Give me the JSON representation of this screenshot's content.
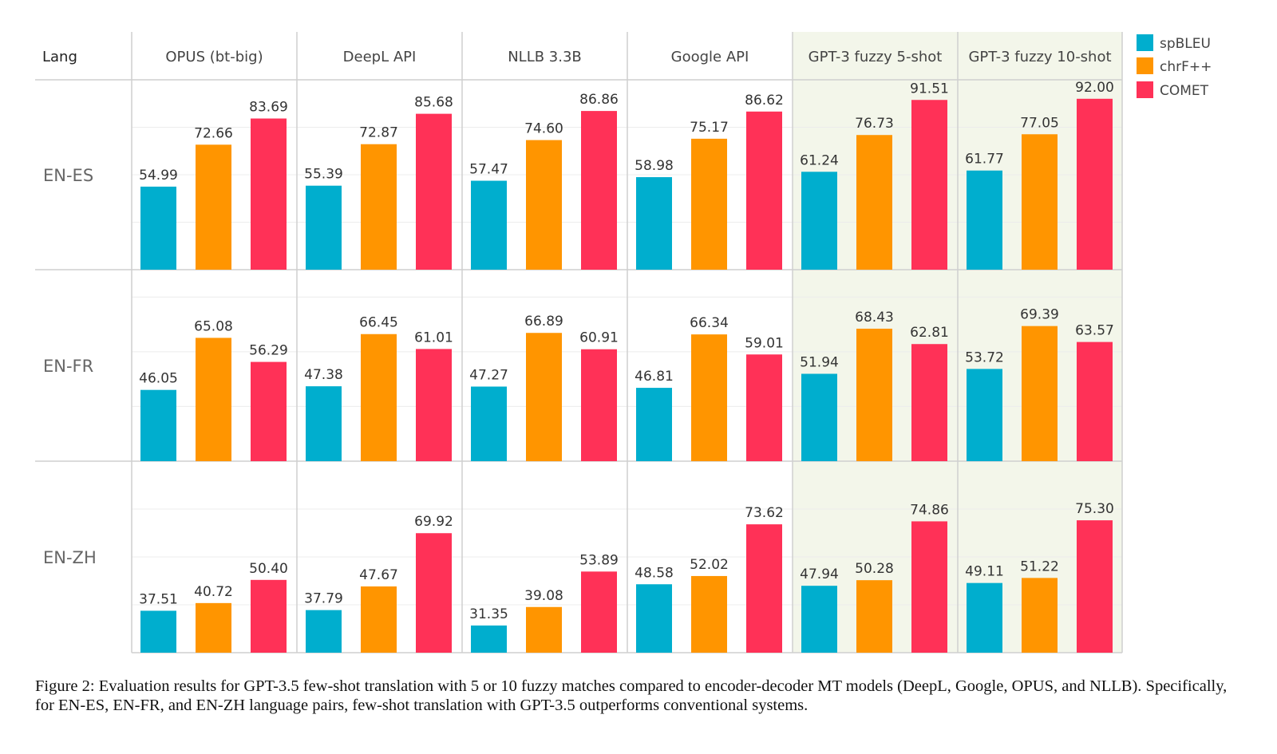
{
  "chart_data": {
    "type": "bar",
    "corner_label": "Lang",
    "systems": [
      {
        "name": "OPUS (bt-big)",
        "highlight": false
      },
      {
        "name": "DeepL API",
        "highlight": false
      },
      {
        "name": "NLLB 3.3B",
        "highlight": false
      },
      {
        "name": "Google API",
        "highlight": false
      },
      {
        "name": "GPT-3 fuzzy 5-shot",
        "highlight": true
      },
      {
        "name": "GPT-3 fuzzy 10-shot",
        "highlight": true
      }
    ],
    "languages": [
      "EN-ES",
      "EN-FR",
      "EN-ZH"
    ],
    "metrics": [
      {
        "name": "spBLEU",
        "color": "#00AECE"
      },
      {
        "name": "chrF++",
        "color": "#FF9500"
      },
      {
        "name": "COMET",
        "color": "#FF3157"
      }
    ],
    "values": {
      "EN-ES": [
        [
          54.99,
          72.66,
          83.69
        ],
        [
          55.39,
          72.87,
          85.68
        ],
        [
          57.47,
          74.6,
          86.86
        ],
        [
          58.98,
          75.17,
          86.62
        ],
        [
          61.24,
          76.73,
          91.51
        ],
        [
          61.77,
          77.05,
          92.0
        ]
      ],
      "EN-FR": [
        [
          46.05,
          65.08,
          56.29
        ],
        [
          47.38,
          66.45,
          61.01
        ],
        [
          47.27,
          66.89,
          60.91
        ],
        [
          46.81,
          66.34,
          59.01
        ],
        [
          51.94,
          68.43,
          62.81
        ],
        [
          53.72,
          69.39,
          63.57
        ]
      ],
      "EN-ZH": [
        [
          37.51,
          40.72,
          50.4
        ],
        [
          37.79,
          47.67,
          69.92
        ],
        [
          31.35,
          39.08,
          53.89
        ],
        [
          48.58,
          52.02,
          73.62
        ],
        [
          47.94,
          50.28,
          74.86
        ],
        [
          49.11,
          51.22,
          75.3
        ]
      ]
    },
    "value_labels": {
      "EN-ES": [
        [
          "54.99",
          "72.66",
          "83.69"
        ],
        [
          "55.39",
          "72.87",
          "85.68"
        ],
        [
          "57.47",
          "74.60",
          "86.86"
        ],
        [
          "58.98",
          "75.17",
          "86.62"
        ],
        [
          "61.24",
          "76.73",
          "91.51"
        ],
        [
          "61.77",
          "77.05",
          "92.00"
        ]
      ],
      "EN-FR": [
        [
          "46.05",
          "65.08",
          "56.29"
        ],
        [
          "47.38",
          "66.45",
          "61.01"
        ],
        [
          "47.27",
          "66.89",
          "60.91"
        ],
        [
          "46.81",
          "66.34",
          "59.01"
        ],
        [
          "51.94",
          "68.43",
          "62.81"
        ],
        [
          "53.72",
          "69.39",
          "63.57"
        ]
      ],
      "EN-ZH": [
        [
          "37.51",
          "40.72",
          "50.40"
        ],
        [
          "37.79",
          "47.67",
          "69.92"
        ],
        [
          "31.35",
          "39.08",
          "53.89"
        ],
        [
          "48.58",
          "52.02",
          "73.62"
        ],
        [
          "47.94",
          "50.28",
          "74.86"
        ],
        [
          "49.11",
          "51.22",
          "75.30"
        ]
      ]
    },
    "ylim": {
      "EN-ES": [
        20,
        100
      ],
      "EN-FR": [
        20,
        90
      ],
      "EN-ZH": [
        20,
        100
      ]
    },
    "grid": true,
    "legend_position": "top-right",
    "highlight_color": "#F3F6EA",
    "caption": "Figure 2: Evaluation results for GPT-3.5 few-shot translation with 5 or 10 fuzzy matches compared to encoder-decoder MT models (DeepL, Google, OPUS, and NLLB). Specifically, for EN-ES, EN-FR, and EN-ZH language pairs, few-shot translation with GPT-3.5 outperforms conventional systems."
  }
}
